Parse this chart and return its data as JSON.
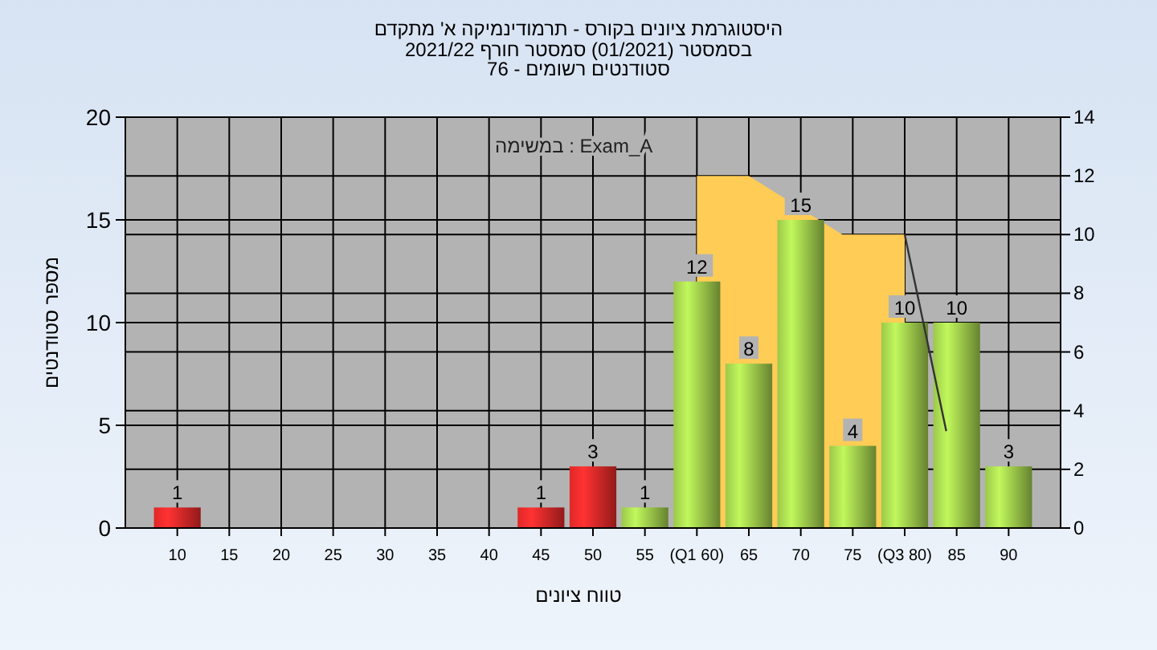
{
  "chart_data": {
    "type": "bar",
    "title": "היסטוגרמת ציונים בקורס - תרמודינמיקה א' מתקדם",
    "subtitle": "בסמסטר  (01/2021)  סמסטר חורף 2021/22\nסטודנטים רשומים - 76",
    "xlabel": "טווח ציונים",
    "ylabel": "מספר סטודנטים",
    "annotations": [
      "במשימה : Exam_A"
    ],
    "x": [
      10,
      45,
      50,
      55,
      60,
      65,
      70,
      75,
      80,
      85,
      90
    ],
    "xlim": [
      5,
      95
    ],
    "xticks": [
      10,
      15,
      20,
      25,
      30,
      35,
      40,
      45,
      50,
      55,
      {
        "value": 60,
        "label": "(Q1 60)"
      },
      65,
      70,
      75,
      {
        "value": 80,
        "label": "(Q3 80)"
      },
      85,
      90
    ],
    "ylim": [
      0,
      20
    ],
    "yticks": [
      0,
      5,
      10,
      15,
      20
    ],
    "y2lim": [
      0,
      14
    ],
    "y2ticks": [
      0,
      2,
      4,
      6,
      8,
      10,
      12,
      14
    ],
    "grid": true,
    "series": [
      {
        "type": "area",
        "axis": "y2",
        "color": "#ffcc55",
        "x": [
          60,
          65,
          74,
          80
        ],
        "values": [
          12,
          12,
          10,
          10
        ]
      },
      {
        "values": [
          1,
          1,
          3,
          1,
          12,
          8,
          15,
          4,
          10,
          10,
          3
        ],
        "value_labels": [
          "1",
          "1",
          "3",
          "1",
          "12",
          "8",
          "15",
          "4",
          "10",
          "10",
          "3"
        ],
        "colors": [
          "#e02828",
          "#e02828",
          "#e02828",
          "#9cc84a",
          "#9cc84a",
          "#9cc84a",
          "#9cc84a",
          "#9cc84a",
          "#9cc84a",
          "#9cc84a",
          "#9cc84a"
        ]
      },
      {
        "type": "line",
        "axis": "y2",
        "color": "#333333",
        "x": [
          80,
          84
        ],
        "values": [
          10,
          3.3
        ]
      }
    ]
  }
}
